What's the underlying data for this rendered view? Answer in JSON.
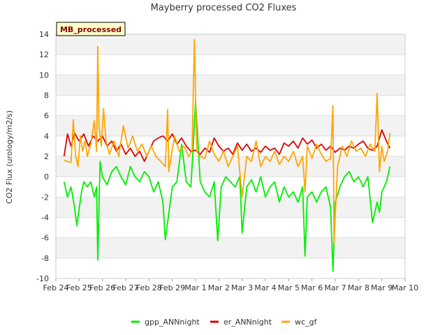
{
  "chart_data": {
    "type": "line",
    "title": "Mayberry processed CO2 Fluxes",
    "ylabel": "CO2 Flux (urology/m2/s)",
    "xlabel": "",
    "badge": "MB_processed",
    "ylim": [
      -10,
      14
    ],
    "yticks": [
      -10,
      -8,
      -6,
      -4,
      -2,
      0,
      2,
      4,
      6,
      8,
      10,
      12,
      14
    ],
    "xlim": [
      0,
      15
    ],
    "xtick_labels": [
      "Feb 24",
      "Feb 25",
      "Feb 26",
      "Feb 27",
      "Feb 28",
      "Feb 29",
      "Mar 1",
      "Mar 2",
      "Mar 3",
      "Mar 4",
      "Mar 5",
      "Mar 6",
      "Mar 7",
      "Mar 8",
      "Mar 9",
      "Mar 10"
    ],
    "x_units": "days since Feb 24",
    "grid": true,
    "legend_position": "bottom",
    "series": [
      {
        "name": "gpp_ANNnight",
        "color": "#00ee00",
        "x": [
          0.35,
          0.5,
          0.65,
          0.8,
          0.9,
          1.0,
          1.1,
          1.2,
          1.35,
          1.5,
          1.65,
          1.75,
          1.8,
          1.85,
          1.9,
          2.0,
          2.2,
          2.4,
          2.6,
          2.8,
          3.0,
          3.2,
          3.4,
          3.6,
          3.8,
          4.0,
          4.2,
          4.4,
          4.6,
          4.7,
          4.8,
          5.0,
          5.2,
          5.4,
          5.6,
          5.8,
          5.9,
          6.0,
          6.2,
          6.4,
          6.6,
          6.8,
          6.95,
          7.1,
          7.3,
          7.5,
          7.7,
          7.9,
          8.0,
          8.2,
          8.4,
          8.6,
          8.8,
          9.0,
          9.2,
          9.4,
          9.6,
          9.8,
          10.0,
          10.2,
          10.4,
          10.6,
          10.7,
          10.8,
          11.0,
          11.2,
          11.4,
          11.6,
          11.8,
          11.9,
          12.0,
          12.2,
          12.4,
          12.6,
          12.8,
          13.0,
          13.2,
          13.4,
          13.6,
          13.8,
          13.9,
          14.0,
          14.2,
          14.35
        ],
        "y": [
          -0.5,
          -2.0,
          -1.0,
          -3.0,
          -4.8,
          -3.2,
          -1.5,
          -0.5,
          -1.0,
          -0.5,
          -2.0,
          -1.0,
          -8.2,
          -3.0,
          1.5,
          0.0,
          -0.8,
          0.5,
          1.0,
          0.0,
          -0.8,
          1.0,
          0.0,
          -0.5,
          0.5,
          0.0,
          -1.5,
          -0.5,
          -2.5,
          -6.2,
          -4.5,
          -1.0,
          -0.5,
          3.2,
          -0.5,
          -1.0,
          3.0,
          7.5,
          -0.5,
          -1.5,
          -2.0,
          -0.5,
          -6.3,
          -1.0,
          0.0,
          -0.5,
          -1.0,
          0.0,
          -5.5,
          -1.0,
          -0.3,
          -1.5,
          0.0,
          -2.0,
          -1.0,
          -0.5,
          -2.5,
          -1.0,
          -2.0,
          -1.5,
          -2.5,
          -1.0,
          -7.8,
          -2.0,
          -1.5,
          -2.5,
          -1.5,
          -1.0,
          -3.0,
          -9.3,
          -2.5,
          -1.0,
          0.0,
          0.5,
          -0.5,
          0.0,
          -1.0,
          0.0,
          -4.5,
          -2.5,
          -3.5,
          -1.5,
          -0.5,
          1.0
        ]
      },
      {
        "name": "er_ANNnight",
        "color": "#dd0000",
        "x": [
          0.35,
          0.5,
          0.65,
          0.8,
          1.0,
          1.2,
          1.4,
          1.6,
          1.8,
          2.0,
          2.2,
          2.4,
          2.6,
          2.8,
          3.0,
          3.2,
          3.4,
          3.6,
          3.8,
          4.0,
          4.2,
          4.4,
          4.6,
          4.8,
          5.0,
          5.2,
          5.4,
          5.6,
          5.8,
          6.0,
          6.2,
          6.4,
          6.6,
          6.8,
          7.0,
          7.2,
          7.4,
          7.6,
          7.8,
          8.0,
          8.2,
          8.4,
          8.6,
          8.8,
          9.0,
          9.2,
          9.4,
          9.6,
          9.8,
          10.0,
          10.2,
          10.4,
          10.6,
          10.8,
          11.0,
          11.2,
          11.4,
          11.6,
          11.8,
          12.0,
          12.2,
          12.4,
          12.6,
          12.8,
          13.0,
          13.2,
          13.4,
          13.6,
          13.8,
          14.0,
          14.2,
          14.35
        ],
        "y": [
          2.0,
          4.2,
          3.0,
          4.3,
          3.5,
          4.2,
          3.0,
          4.0,
          3.5,
          4.0,
          3.0,
          3.5,
          2.5,
          3.2,
          2.2,
          2.8,
          2.0,
          2.5,
          1.5,
          2.5,
          3.5,
          3.8,
          4.0,
          3.5,
          4.2,
          3.2,
          3.8,
          3.0,
          2.5,
          2.6,
          2.2,
          2.8,
          2.4,
          3.8,
          3.0,
          2.5,
          2.8,
          2.2,
          3.3,
          2.6,
          3.2,
          2.5,
          2.8,
          2.4,
          3.0,
          2.6,
          2.8,
          2.2,
          3.3,
          3.0,
          3.5,
          2.8,
          3.8,
          3.2,
          3.6,
          2.8,
          3.2,
          2.6,
          3.0,
          2.4,
          2.8,
          2.6,
          3.0,
          2.8,
          3.2,
          3.5,
          2.8,
          2.6,
          3.0,
          4.6,
          3.5,
          2.8
        ]
      },
      {
        "name": "wc_gf",
        "color": "#ffa500",
        "x": [
          0.35,
          0.5,
          0.65,
          0.75,
          0.85,
          0.95,
          1.05,
          1.15,
          1.25,
          1.35,
          1.5,
          1.65,
          1.75,
          1.8,
          1.85,
          1.95,
          2.05,
          2.15,
          2.3,
          2.5,
          2.7,
          2.9,
          3.1,
          3.3,
          3.5,
          3.7,
          3.9,
          4.1,
          4.3,
          4.5,
          4.7,
          4.8,
          4.85,
          4.95,
          5.1,
          5.3,
          5.5,
          5.7,
          5.85,
          5.95,
          6.05,
          6.2,
          6.4,
          6.6,
          6.8,
          7.0,
          7.2,
          7.4,
          7.6,
          7.8,
          8.0,
          8.2,
          8.4,
          8.6,
          8.8,
          9.0,
          9.2,
          9.4,
          9.6,
          9.8,
          10.0,
          10.2,
          10.4,
          10.6,
          10.7,
          10.8,
          11.0,
          11.2,
          11.4,
          11.6,
          11.8,
          11.9,
          11.95,
          12.1,
          12.3,
          12.5,
          12.7,
          12.9,
          13.1,
          13.3,
          13.5,
          13.7,
          13.8,
          13.9,
          14.0,
          14.1,
          14.25,
          14.35
        ],
        "y": [
          1.6,
          1.5,
          1.4,
          5.6,
          2.0,
          1.0,
          4.0,
          2.5,
          3.5,
          2.0,
          3.2,
          5.5,
          2.5,
          12.8,
          5.0,
          3.0,
          6.7,
          3.5,
          2.2,
          3.5,
          2.0,
          5.0,
          2.8,
          4.0,
          2.5,
          3.2,
          2.0,
          3.0,
          2.0,
          1.5,
          1.0,
          6.6,
          0.5,
          2.0,
          4.0,
          2.5,
          3.0,
          2.0,
          2.5,
          13.5,
          2.5,
          2.0,
          1.8,
          3.5,
          2.2,
          1.5,
          2.5,
          1.0,
          2.0,
          3.0,
          -2.0,
          2.0,
          1.5,
          3.5,
          1.0,
          2.0,
          1.5,
          2.5,
          1.2,
          2.0,
          1.5,
          2.5,
          1.0,
          2.0,
          -1.5,
          3.0,
          1.8,
          3.2,
          2.2,
          1.5,
          1.8,
          7.0,
          -6.5,
          1.0,
          3.0,
          2.0,
          3.5,
          2.5,
          2.8,
          2.0,
          3.2,
          2.5,
          8.2,
          0.5,
          3.0,
          1.5,
          2.5,
          4.3
        ]
      }
    ]
  }
}
